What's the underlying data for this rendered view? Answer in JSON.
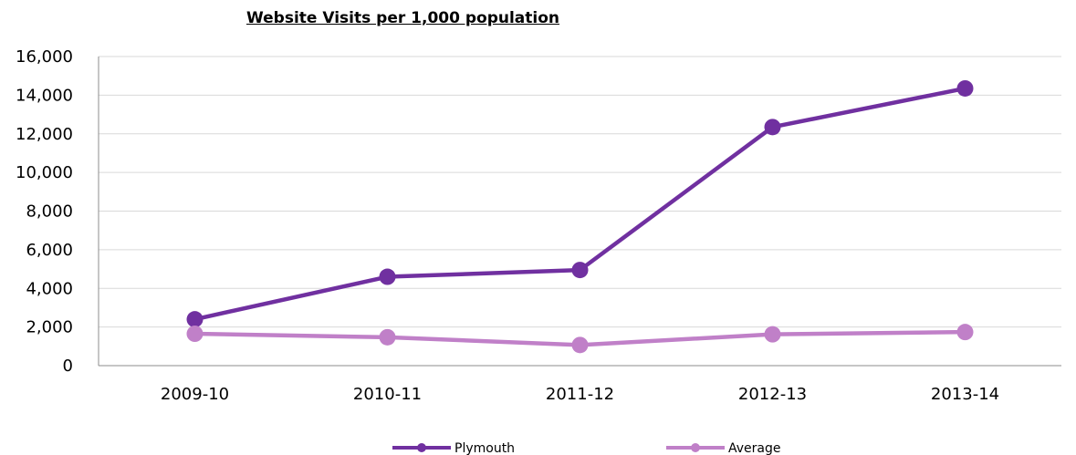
{
  "chart_data": {
    "type": "line",
    "title": "Website Visits per 1,000 population",
    "categories": [
      "2009-10",
      "2010-11",
      "2011-12",
      "2012-13",
      "2013-14"
    ],
    "ylim": [
      0,
      16000
    ],
    "yticks": [
      0,
      2000,
      4000,
      6000,
      8000,
      10000,
      12000,
      14000,
      16000
    ],
    "ytick_labels": [
      "0",
      "2,000",
      "4,000",
      "6,000",
      "8,000",
      "10,000",
      "12,000",
      "14,000",
      "16,000"
    ],
    "grid": true,
    "legend_position": "bottom",
    "series": [
      {
        "name": "Plymouth",
        "values": [
          2400,
          4600,
          4950,
          12350,
          14350
        ],
        "color": "#7030a0"
      },
      {
        "name": "Average",
        "values": [
          1650,
          1470,
          1070,
          1620,
          1740
        ],
        "color": "#c080c8"
      }
    ]
  }
}
